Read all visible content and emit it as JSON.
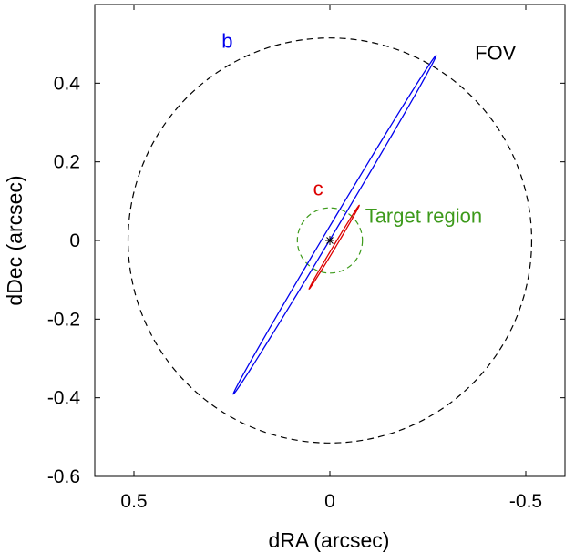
{
  "chart_data": {
    "type": "line",
    "title": "",
    "xlabel": "dRA (arcsec)",
    "ylabel": "dDec (arcsec)",
    "xlim": [
      0.6,
      -0.6
    ],
    "ylim": [
      -0.6,
      0.6
    ],
    "x_reversed": true,
    "x_ticks": [
      0.5,
      0,
      -0.5
    ],
    "x_tick_labels": [
      "0.5",
      "0",
      "-0.5"
    ],
    "y_ticks": [
      0.4,
      0.2,
      0,
      -0.2,
      -0.4,
      -0.6
    ],
    "y_tick_labels": [
      "0.4",
      "0.2",
      "0",
      "-0.2",
      "-0.4",
      "-0.6"
    ],
    "grid": false,
    "center_marker": {
      "x": 0,
      "y": 0,
      "color": "#000000"
    },
    "circles": [
      {
        "label": "FOV",
        "cx": 0,
        "cy": 0,
        "r": 0.515,
        "color": "#000000",
        "style": "dashed",
        "label_x": -0.37,
        "label_y": 0.46
      },
      {
        "label": "Target region",
        "cx": 0,
        "cy": 0,
        "r": 0.083,
        "color": "#3d9a1b",
        "style": "dashed",
        "label_x": -0.09,
        "label_y": 0.045
      }
    ],
    "ellipses": [
      {
        "label": "b",
        "color": "#0000ee",
        "cx": -0.0125,
        "cy": 0.04,
        "semi_major": 0.502,
        "semi_minor": 0.009,
        "angle_deg": 121,
        "label_x": 0.262,
        "label_y": 0.49
      },
      {
        "label": "c",
        "color": "#dd0000",
        "cx": -0.011,
        "cy": -0.017,
        "semi_major": 0.124,
        "semi_minor": 0.003,
        "angle_deg": 121,
        "label_x": 0.03,
        "label_y": 0.115
      }
    ]
  }
}
